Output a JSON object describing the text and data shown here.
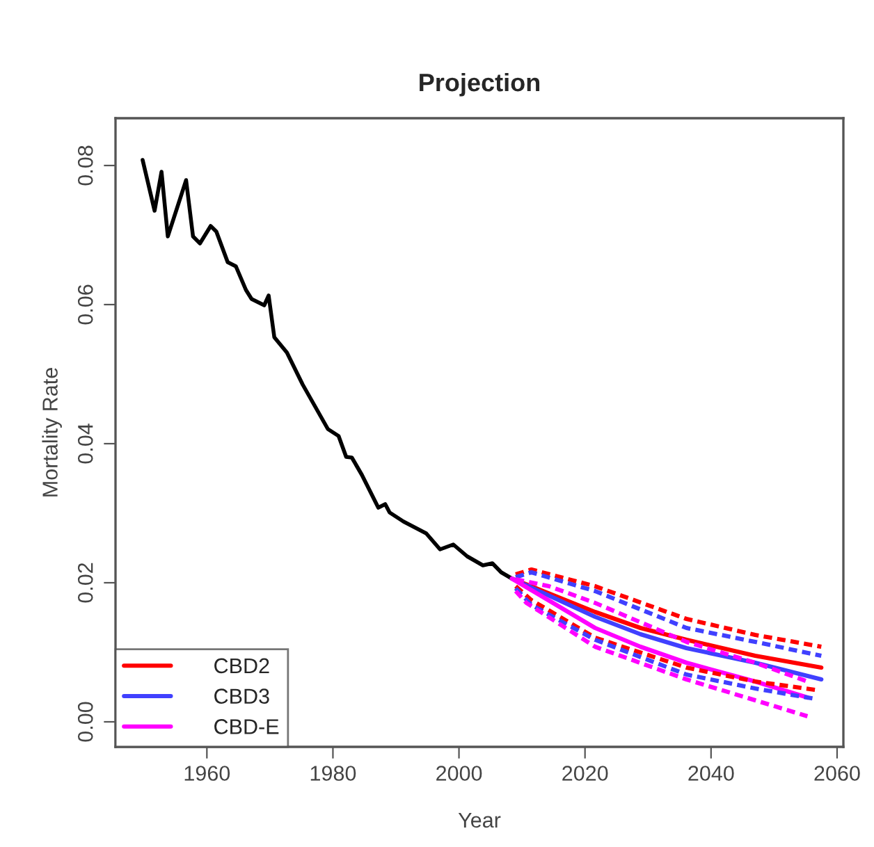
{
  "chart_data": {
    "type": "line",
    "title": "Projection",
    "xlabel": "Year",
    "ylabel": "Mortality Rate",
    "xlim": [
      1945.5,
      2061
    ],
    "ylim": [
      -0.0036,
      0.0868
    ],
    "xticks": [
      1960,
      1980,
      2000,
      2020,
      2040,
      2060
    ],
    "yticks": [
      {
        "value": 0,
        "label": "0.00"
      },
      {
        "value": 0.02,
        "label": "0.02"
      },
      {
        "value": 0.04,
        "label": "0.04"
      },
      {
        "value": 0.06,
        "label": "0.06"
      },
      {
        "value": 0.08,
        "label": "0.08"
      }
    ],
    "grid": false,
    "legend": "bottom left",
    "marker": "none",
    "series": [
      {
        "color": "#000000",
        "line_style": "solid",
        "x": [
          1949.8,
          1951.7,
          1952.8,
          1953.8,
          1956.7,
          1957.8,
          1958.9,
          1960.6,
          1961.5,
          1963.3,
          1964.6,
          1966.2,
          1967.1,
          1969.1,
          1969.8,
          1970.7,
          1972.7,
          1975.2,
          1979.2,
          1980.9,
          1982.1,
          1983.0,
          1984.6,
          1987.2,
          1988.3,
          1989.0,
          1991.2,
          1994.8,
          1997.0,
          1999.1,
          2001.3,
          2003.8,
          2005.3,
          2006.7,
          2008.4
        ],
        "values": [
          0.0808,
          0.0735,
          0.0791,
          0.0698,
          0.0779,
          0.0698,
          0.0688,
          0.0713,
          0.0705,
          0.0661,
          0.0655,
          0.0621,
          0.0608,
          0.0599,
          0.0613,
          0.0553,
          0.0531,
          0.0485,
          0.0421,
          0.0411,
          0.0381,
          0.038,
          0.0355,
          0.0308,
          0.0313,
          0.0301,
          0.0288,
          0.0271,
          0.0248,
          0.0255,
          0.0238,
          0.0225,
          0.0228,
          0.0215,
          0.0206
        ]
      },
      {
        "name": "CBD2",
        "color": "#ff0000",
        "line_style": "solid",
        "x": [
          2008.4,
          2021.6,
          2028.8,
          2036.1,
          2047,
          2057.5
        ],
        "values": [
          0.0206,
          0.0158,
          0.0135,
          0.0118,
          0.0095,
          0.0078
        ]
      },
      {
        "name": "CBD3",
        "color": "#4040ff",
        "line_style": "solid",
        "x": [
          2008.4,
          2021.6,
          2028.8,
          2036.1,
          2047,
          2057.5
        ],
        "values": [
          0.0206,
          0.0151,
          0.0126,
          0.0106,
          0.0085,
          0.0061
        ]
      },
      {
        "name": "CBD-E",
        "color": "#ff00ff",
        "line_style": "solid",
        "x": [
          2008.4,
          2021.6,
          2028.8,
          2036.1,
          2047,
          2055.3
        ],
        "values": [
          0.0206,
          0.0135,
          0.0108,
          0.0085,
          0.0058,
          0.0035
        ]
      },
      {
        "color": "#ff0000",
        "line_style": "dashed",
        "x": [
          2009,
          2011.5,
          2021.6,
          2036.1,
          2047,
          2057.5
        ],
        "values": [
          0.0212,
          0.0219,
          0.0195,
          0.0148,
          0.0125,
          0.0108
        ]
      },
      {
        "color": "#4040ff",
        "line_style": "dashed",
        "x": [
          2009,
          2011.5,
          2021.6,
          2036.1,
          2047,
          2057.5
        ],
        "values": [
          0.0208,
          0.0215,
          0.0188,
          0.0135,
          0.0115,
          0.0095
        ]
      },
      {
        "color": "#ff0000",
        "line_style": "dashed",
        "x": [
          2009,
          2011.5,
          2021.6,
          2036.1,
          2047,
          2056.5
        ],
        "values": [
          0.0195,
          0.0175,
          0.0121,
          0.0078,
          0.0058,
          0.0046
        ]
      },
      {
        "color": "#4040ff",
        "line_style": "dashed",
        "x": [
          2009,
          2011.5,
          2021.6,
          2036.1,
          2047,
          2056.5
        ],
        "values": [
          0.0192,
          0.0168,
          0.0118,
          0.0068,
          0.0048,
          0.0033
        ]
      },
      {
        "color": "#ff00ff",
        "line_style": "dashed",
        "x": [
          2009,
          2014.3,
          2021.6,
          2036.1,
          2047,
          2055.3
        ],
        "values": [
          0.0205,
          0.0195,
          0.0171,
          0.0115,
          0.0085,
          0.0058
        ]
      },
      {
        "color": "#ff00ff",
        "line_style": "dashed",
        "x": [
          2009,
          2010.7,
          2021.6,
          2036.1,
          2047,
          2055.3
        ],
        "values": [
          0.0188,
          0.0171,
          0.0108,
          0.0061,
          0.0031,
          0.0008
        ]
      }
    ]
  }
}
